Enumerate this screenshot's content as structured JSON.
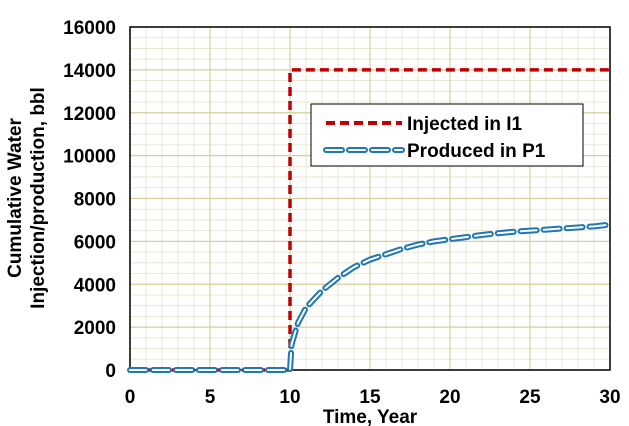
{
  "chart_data": {
    "type": "line",
    "title": "",
    "xlabel": "Time, Year",
    "ylabel_line1": "Cumulative Water",
    "ylabel_line2": "Injection/production, bbl",
    "xlim": [
      0,
      30
    ],
    "ylim": [
      0,
      16000
    ],
    "x_ticks": [
      "0",
      "5",
      "10",
      "15",
      "20",
      "25",
      "30"
    ],
    "y_ticks": [
      "0",
      "2000",
      "4000",
      "6000",
      "8000",
      "10000",
      "12000",
      "14000",
      "16000"
    ],
    "grid": true,
    "legend_position": "center-right",
    "series": [
      {
        "name": "Injected in I1",
        "color": "#c00000",
        "style": "short-dash",
        "x": [
          0,
          10,
          10,
          30
        ],
        "y": [
          0,
          0,
          14000,
          14000
        ]
      },
      {
        "name": "Produced in P1",
        "color": "#1f77b4",
        "style": "long-dash",
        "x": [
          0,
          10,
          10.1,
          10.5,
          11,
          12,
          13,
          14,
          15,
          16,
          17,
          18,
          19,
          20,
          21,
          22,
          23,
          24,
          25,
          26,
          27,
          28,
          29,
          30
        ],
        "y": [
          0,
          0,
          1200,
          2200,
          2900,
          3700,
          4300,
          4800,
          5150,
          5400,
          5650,
          5850,
          6000,
          6100,
          6200,
          6300,
          6380,
          6450,
          6500,
          6550,
          6600,
          6650,
          6700,
          6780
        ]
      }
    ]
  }
}
